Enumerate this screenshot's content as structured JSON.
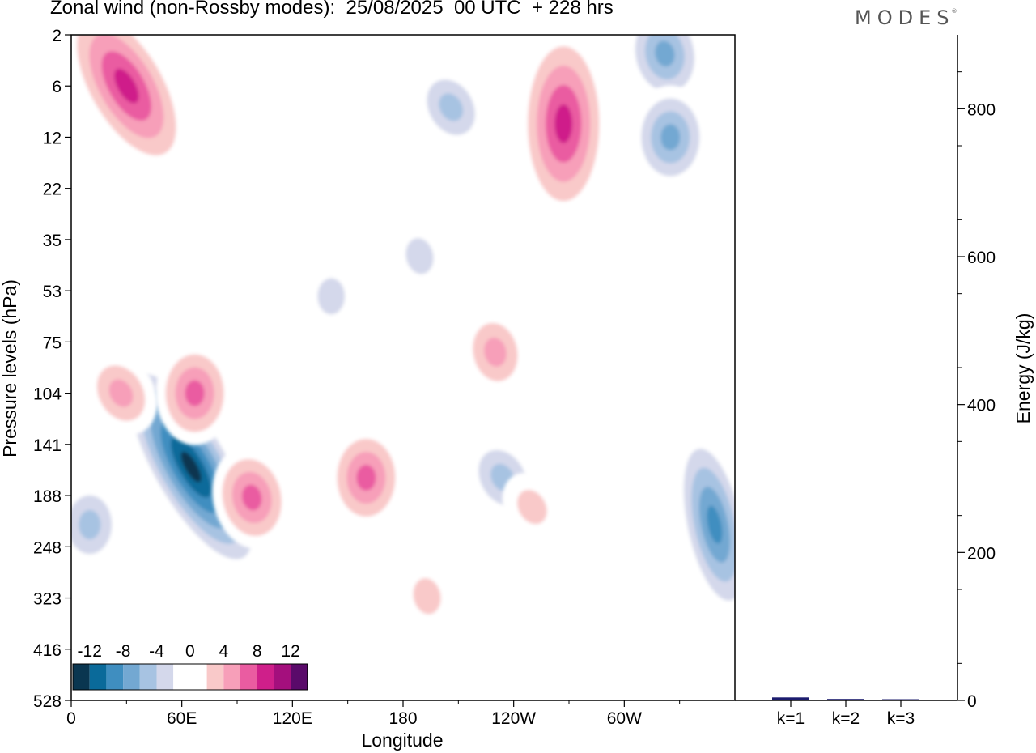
{
  "title": "Zonal wind (non-Rossby modes):  25/08/2025  00 UTC  + 228 hrs",
  "brand": "MODES",
  "chart_data": [
    {
      "type": "heatmap",
      "title": "Zonal wind (non-Rossby modes):  25/08/2025  00 UTC  + 228 hrs",
      "xlabel": "Longitude",
      "ylabel": "Pressure levels (hPa)",
      "x_ticks": [
        "0",
        "60E",
        "120E",
        "180",
        "120W",
        "60W"
      ],
      "x_range": [
        0,
        360
      ],
      "y_ticks": [
        "2",
        "6",
        "12",
        "22",
        "35",
        "53",
        "75",
        "104",
        "141",
        "188",
        "248",
        "323",
        "416",
        "528"
      ],
      "colorbar": {
        "labels": [
          "-12",
          "-8",
          "-4",
          "0",
          "4",
          "8",
          "12"
        ],
        "levels": [
          -14,
          -12,
          -10,
          -8,
          -6,
          -4,
          -2,
          0,
          2,
          4,
          6,
          8,
          10,
          12,
          14
        ],
        "colors": [
          "#0a3650",
          "#0a6a9a",
          "#3f8ec0",
          "#73a8d2",
          "#a7c3e2",
          "#d4d8eb",
          "#ffffff",
          "#ffffff",
          "#f9c9c9",
          "#f79fb9",
          "#ea5ca1",
          "#cf1f8a",
          "#a40f7d",
          "#5a0a6a"
        ],
        "placement": "lower-left"
      },
      "features": [
        {
          "lon": 65,
          "level_hPa": 160,
          "value": -14
        },
        {
          "lon": 98,
          "level_hPa": 190,
          "value": 8
        },
        {
          "lon": 160,
          "level_hPa": 170,
          "value": 8
        },
        {
          "lon": 234,
          "level_hPa": 170,
          "value": -6
        },
        {
          "lon": 349,
          "level_hPa": 220,
          "value": -10
        },
        {
          "lon": 67,
          "level_hPa": 104,
          "value": 8
        },
        {
          "lon": 27,
          "level_hPa": 104,
          "value": 6
        },
        {
          "lon": 230,
          "level_hPa": 80,
          "value": 6
        },
        {
          "lon": 267,
          "level_hPa": 10,
          "value": 10
        },
        {
          "lon": 30,
          "level_hPa": 6,
          "value": 10
        },
        {
          "lon": 322,
          "level_hPa": 3,
          "value": -8
        },
        {
          "lon": 325,
          "level_hPa": 12,
          "value": -8
        },
        {
          "lon": 206,
          "level_hPa": 8,
          "value": -6
        },
        {
          "lon": 189,
          "level_hPa": 40,
          "value": -4
        },
        {
          "lon": 141,
          "level_hPa": 55,
          "value": -4
        },
        {
          "lon": 250,
          "level_hPa": 200,
          "value": 4
        },
        {
          "lon": 193,
          "level_hPa": 320,
          "value": 4
        },
        {
          "lon": 10,
          "level_hPa": 220,
          "value": -6
        }
      ]
    },
    {
      "type": "bar",
      "categories": [
        "k=1",
        "k=2",
        "k=3"
      ],
      "values": [
        4,
        2,
        1
      ],
      "ylabel": "Energy (J/kg)",
      "y_ticks": [
        "0",
        "200",
        "400",
        "600",
        "800"
      ],
      "ylim": [
        0,
        900
      ]
    }
  ]
}
